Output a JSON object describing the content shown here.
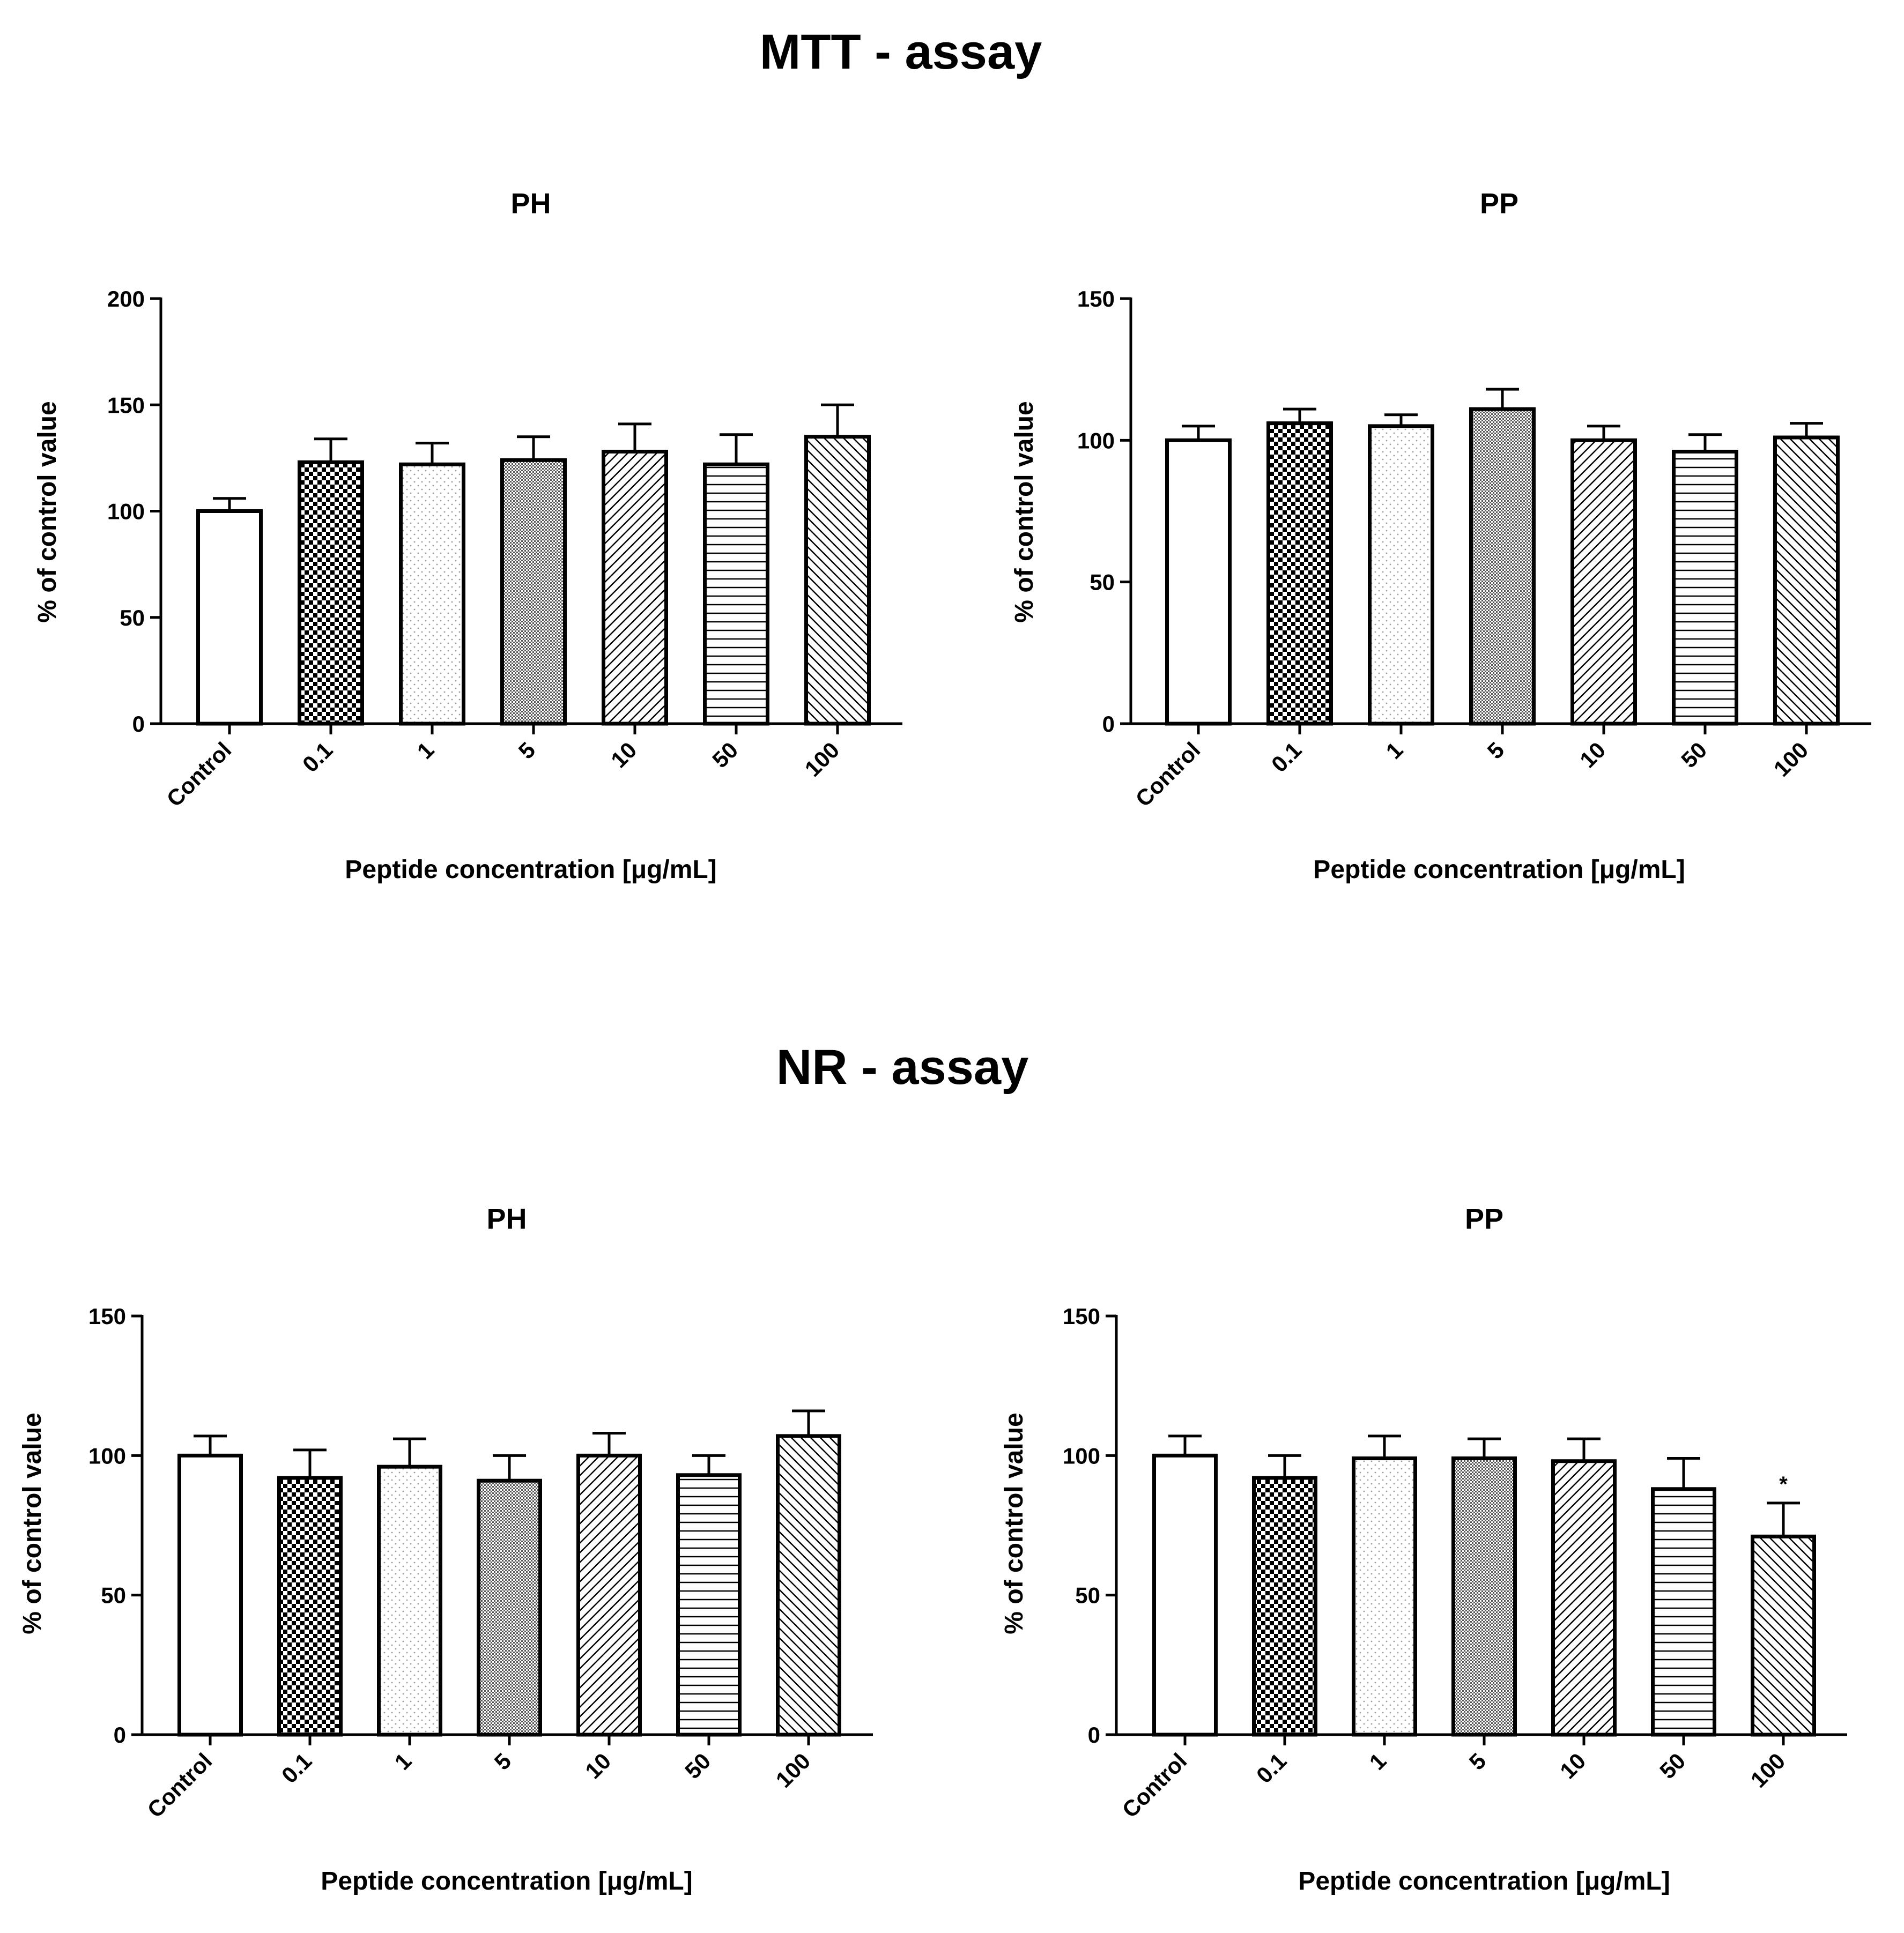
{
  "sections": [
    {
      "title": "MTT - assay"
    },
    {
      "title": "NR - assay"
    }
  ],
  "chart_data": [
    {
      "type": "bar",
      "assay": "MTT - assay",
      "title": "PH",
      "xlabel": "Peptide concentration [μg/mL]",
      "ylabel": "% of control value",
      "categories": [
        "Control",
        "0.1",
        "1",
        "5",
        "10",
        "50",
        "100"
      ],
      "values": [
        100,
        123,
        122,
        124,
        128,
        122,
        135
      ],
      "errors": [
        6,
        11,
        10,
        11,
        13,
        14,
        15
      ],
      "significance": [
        "",
        "",
        "",
        "",
        "",
        "",
        ""
      ],
      "ylim": [
        0,
        200
      ],
      "yticks": [
        0,
        50,
        100,
        150,
        200
      ]
    },
    {
      "type": "bar",
      "assay": "MTT - assay",
      "title": "PP",
      "xlabel": "Peptide concentration [μg/mL]",
      "ylabel": "% of control value",
      "categories": [
        "Control",
        "0.1",
        "1",
        "5",
        "10",
        "50",
        "100"
      ],
      "values": [
        100,
        106,
        105,
        111,
        100,
        96,
        101
      ],
      "errors": [
        5,
        5,
        4,
        7,
        5,
        6,
        5
      ],
      "significance": [
        "",
        "",
        "",
        "",
        "",
        "",
        ""
      ],
      "ylim": [
        0,
        150
      ],
      "yticks": [
        0,
        50,
        100,
        150
      ]
    },
    {
      "type": "bar",
      "assay": "NR - assay",
      "title": "PH",
      "xlabel": "Peptide concentration [μg/mL]",
      "ylabel": "% of control value",
      "categories": [
        "Control",
        "0.1",
        "1",
        "5",
        "10",
        "50",
        "100"
      ],
      "values": [
        100,
        92,
        96,
        91,
        100,
        93,
        107
      ],
      "errors": [
        7,
        10,
        10,
        9,
        8,
        7,
        9
      ],
      "significance": [
        "",
        "",
        "",
        "",
        "",
        "",
        ""
      ],
      "ylim": [
        0,
        150
      ],
      "yticks": [
        0,
        50,
        100,
        150
      ]
    },
    {
      "type": "bar",
      "assay": "NR - assay",
      "title": "PP",
      "xlabel": "Peptide concentration [μg/mL]",
      "ylabel": "% of control value",
      "categories": [
        "Control",
        "0.1",
        "1",
        "5",
        "10",
        "50",
        "100"
      ],
      "values": [
        100,
        92,
        99,
        99,
        98,
        88,
        71
      ],
      "errors": [
        7,
        8,
        8,
        7,
        8,
        11,
        12
      ],
      "significance": [
        "",
        "",
        "",
        "",
        "",
        "",
        "*"
      ],
      "ylim": [
        0,
        150
      ],
      "yticks": [
        0,
        50,
        100,
        150
      ]
    }
  ],
  "patterns": [
    "empty",
    "checker",
    "dots",
    "fine-grid",
    "diagonal-up",
    "horizontal-lines",
    "diagonal-down"
  ],
  "colors": {
    "ink": "#000000",
    "background": "#ffffff",
    "dots": "#9a9a9a",
    "fine_grid": "#555555"
  }
}
